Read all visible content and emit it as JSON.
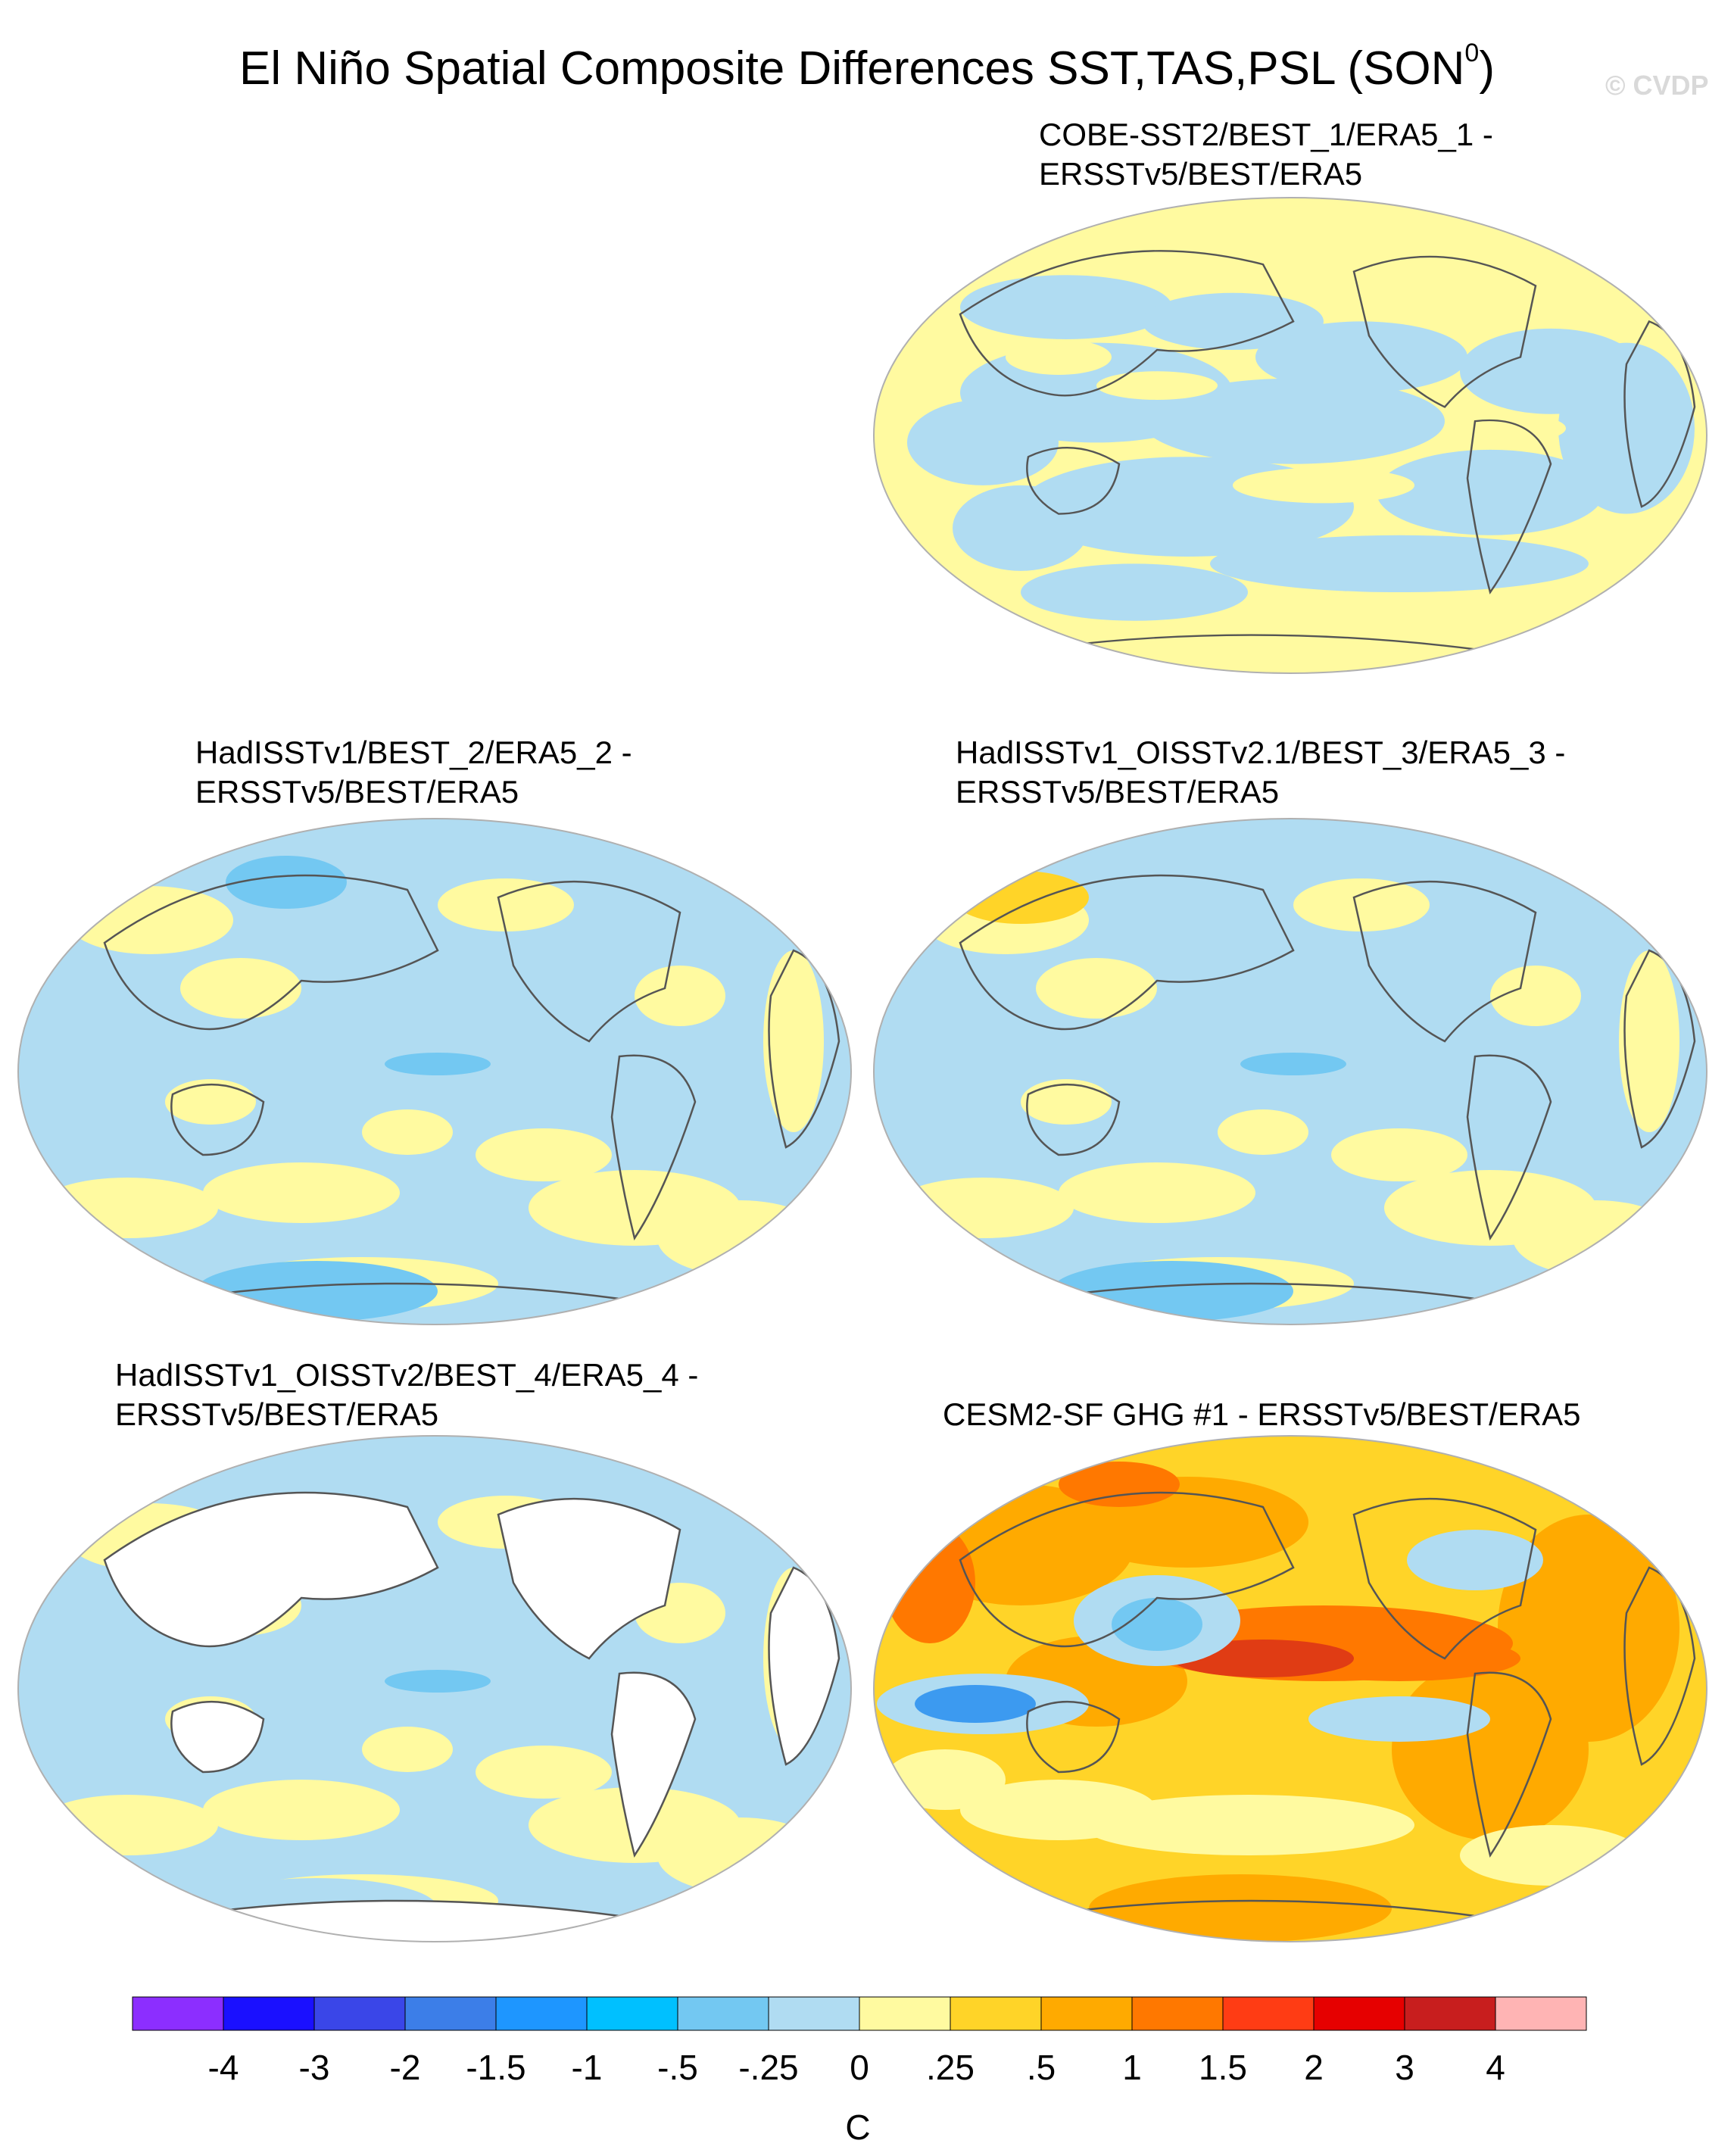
{
  "title": "El Niño Spatial Composite Differences SST,TAS,PSL (SON",
  "title_superscript": "0",
  "title_close": ")",
  "watermark": "© CVDP",
  "panels": [
    {
      "id": "p1",
      "title_line1": "COBE-SST2/BEST_1/ERA5_1 -",
      "title_line2": "ERSSTv5/BEST/ERA5",
      "dominant": "near-zero mixed",
      "land_masked": false
    },
    {
      "id": "p2",
      "title_line1": "HadISSTv1/BEST_2/ERA5_2 -",
      "title_line2": "ERSSTv5/BEST/ERA5",
      "dominant": "slightly negative",
      "land_masked": false
    },
    {
      "id": "p3",
      "title_line1": "HadISSTv1_OISSTv2.1/BEST_3/ERA5_3 -",
      "title_line2": "ERSSTv5/BEST/ERA5",
      "dominant": "slightly negative",
      "land_masked": false
    },
    {
      "id": "p4",
      "title_line1": "HadISSTv1_OISSTv2/BEST_4/ERA5_4 -",
      "title_line2": "ERSSTv5/BEST/ERA5",
      "dominant": "slightly negative",
      "land_masked": true
    },
    {
      "id": "p5",
      "title_line1": "CESM2-SF GHG #1 - ERSSTv5/BEST/ERA5",
      "title_line2": "",
      "dominant": "positive",
      "land_masked": false
    }
  ],
  "colorbar": {
    "unit": "C",
    "labels": [
      "-4",
      "-3",
      "-2",
      "-1.5",
      "-1",
      "-.5",
      "-.25",
      "0",
      ".25",
      ".5",
      "1",
      "1.5",
      "2",
      "3",
      "4"
    ],
    "colors": [
      "#8c2eff",
      "#1a10ff",
      "#3a46e8",
      "#3c7ee8",
      "#1e96ff",
      "#00c0ff",
      "#73c8f2",
      "#b0dcf2",
      "#fffaa0",
      "#ffd428",
      "#ffaa00",
      "#ff7800",
      "#ff3c14",
      "#e60000",
      "#c81e1e",
      "#ffb4b4"
    ]
  },
  "palette": {
    "light_blue": "#b0dcf2",
    "mid_blue": "#73c8f2",
    "blue": "#3c9af0",
    "cyan": "#00c0ff",
    "yellow": "#fffaa0",
    "gold": "#ffd428",
    "orange": "#ffaa00",
    "dark_orange": "#ff7800",
    "red": "#e03c14",
    "outline": "#b0b0b0",
    "coast": "#555555"
  }
}
